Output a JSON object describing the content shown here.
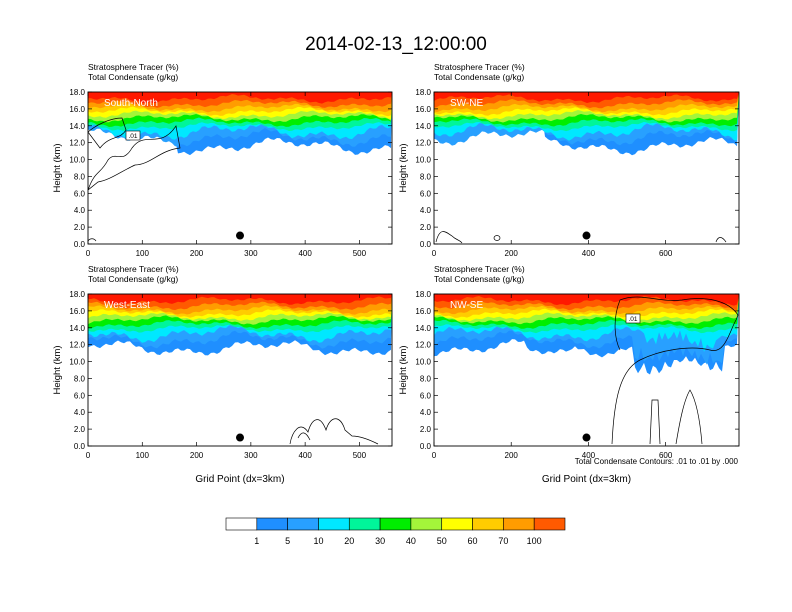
{
  "title": "2014-02-13_12:00:00",
  "contour_note": "Total Condensate Contours: .01 to .01 by .000",
  "legend": {
    "levels": [
      "1",
      "5",
      "10",
      "20",
      "30",
      "40",
      "50",
      "60",
      "70",
      "100"
    ],
    "colors": [
      "#ffffff",
      "#1f8fff",
      "#28a0ff",
      "#00e8ff",
      "#00f59a",
      "#00ee00",
      "#a4f53a",
      "#ffff00",
      "#ffcc00",
      "#ff9c00",
      "#ff5a00",
      "#ff1900"
    ]
  },
  "chart_data": [
    {
      "type": "heatmap",
      "subtitle_lines": [
        "Stratosphere Tracer   (%)",
        "Total Condensate   (g/kg)"
      ],
      "section_label": "South-North",
      "ylabel": "Height (km)",
      "xlabel": "",
      "ylim": [
        0,
        18
      ],
      "yticks": [
        "0.0",
        "2.0",
        "4.0",
        "6.0",
        "8.0",
        "10.0",
        "12.0",
        "14.0",
        "16.0",
        "18.0"
      ],
      "xlim": [
        0,
        560
      ],
      "xticks": [
        0,
        100,
        200,
        300,
        400,
        500
      ],
      "marker_x": 280,
      "contour_label": ".01"
    },
    {
      "type": "heatmap",
      "subtitle_lines": [
        "Stratosphere Tracer   (%)",
        "Total Condensate   (g/kg)"
      ],
      "section_label": "SW-NE",
      "ylabel": "Height (km)",
      "xlabel": "",
      "ylim": [
        0,
        18
      ],
      "yticks": [
        "0.0",
        "2.0",
        "4.0",
        "6.0",
        "8.0",
        "10.0",
        "12.0",
        "14.0",
        "16.0",
        "18.0"
      ],
      "xlim": [
        0,
        790
      ],
      "xticks": [
        0,
        200,
        400,
        600
      ],
      "marker_x": 395,
      "contour_label": ""
    },
    {
      "type": "heatmap",
      "subtitle_lines": [
        "Stratosphere Tracer   (%)",
        "Total Condensate   (g/kg)"
      ],
      "section_label": "West-East",
      "ylabel": "Height (km)",
      "xlabel": "Grid Point (dx=3km)",
      "ylim": [
        0,
        18
      ],
      "yticks": [
        "0.0",
        "2.0",
        "4.0",
        "6.0",
        "8.0",
        "10.0",
        "12.0",
        "14.0",
        "16.0",
        "18.0"
      ],
      "xlim": [
        0,
        560
      ],
      "xticks": [
        0,
        100,
        200,
        300,
        400,
        500
      ],
      "marker_x": 280,
      "contour_label": ""
    },
    {
      "type": "heatmap",
      "subtitle_lines": [
        "Stratosphere Tracer   (%)",
        "Total Condensate   (g/kg)"
      ],
      "section_label": "NW-SE",
      "ylabel": "Height (km)",
      "xlabel": "Grid Point (dx=3km)",
      "ylim": [
        0,
        18
      ],
      "yticks": [
        "0.0",
        "2.0",
        "4.0",
        "6.0",
        "8.0",
        "10.0",
        "12.0",
        "14.0",
        "16.0",
        "18.0"
      ],
      "xlim": [
        0,
        790
      ],
      "xticks": [
        0,
        200,
        400,
        600
      ],
      "marker_x": 395,
      "contour_label": ".01"
    }
  ]
}
